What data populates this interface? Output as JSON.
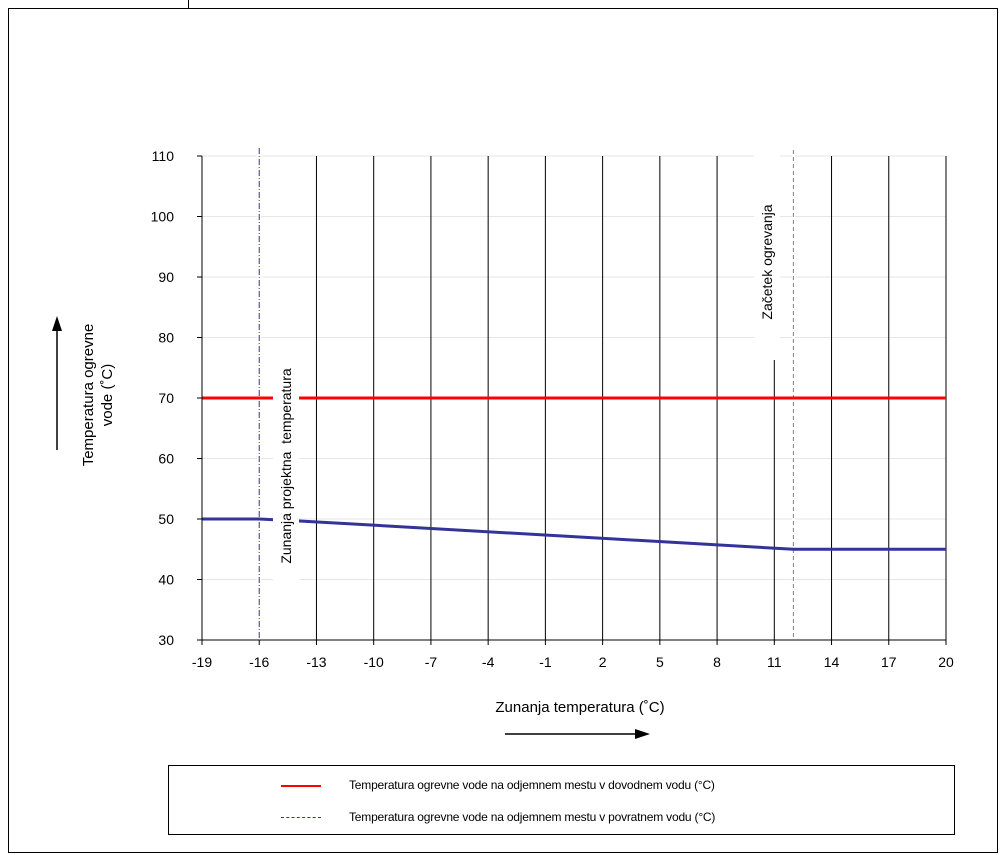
{
  "chart_data": {
    "type": "line",
    "xlabel": "Zunanja temperatura (˚C)",
    "ylabel_line1": "Temperatura ogrevne",
    "ylabel_line2": "vode (˚C)",
    "xlim": [
      -19,
      20
    ],
    "ylim": [
      30,
      110
    ],
    "x_ticks": [
      "-19",
      "-16",
      "-13",
      "-10",
      "-7",
      "-4",
      "-1",
      "2",
      "5",
      "8",
      "11",
      "14",
      "17",
      "20"
    ],
    "y_ticks": [
      "30",
      "40",
      "50",
      "60",
      "70",
      "80",
      "90",
      "100",
      "110"
    ],
    "x_tick_values": [
      -19,
      -16,
      -13,
      -10,
      -7,
      -4,
      -1,
      2,
      5,
      8,
      11,
      14,
      17,
      20
    ],
    "y_tick_values": [
      30,
      40,
      50,
      60,
      70,
      80,
      90,
      100,
      110
    ],
    "grid": "vertical black lines and light horizontal lines",
    "series": [
      {
        "name": "Temperatura ogrevne vode na odjemnem mestu v dovodnem vodu (°C)",
        "color": "#ff0000",
        "x": [
          -19,
          20
        ],
        "y": [
          70,
          70
        ]
      },
      {
        "name": "Temperatura ogrevne vode na odjemnem mestu v povratnem vodu (°C)",
        "color": "#333399",
        "x": [
          -19,
          -16,
          -14,
          12,
          20
        ],
        "y": [
          50,
          50,
          49.7,
          45,
          45
        ]
      }
    ],
    "reference_lines": [
      {
        "x": -16,
        "label": "Zunanja projektna  temperatura",
        "color": "#333399",
        "style": "dash-dot"
      },
      {
        "x": 12,
        "label": "Začetek ogrevanja",
        "color": "#808080",
        "style": "dashed"
      }
    ],
    "legend": {
      "placement": "bottom",
      "entries": [
        "Temperatura ogrevne vode na odjemnem mestu v dovodnem vodu (°C)",
        "Temperatura ogrevne vode na odjemnem mestu v povratnem vodu (°C)"
      ]
    }
  }
}
